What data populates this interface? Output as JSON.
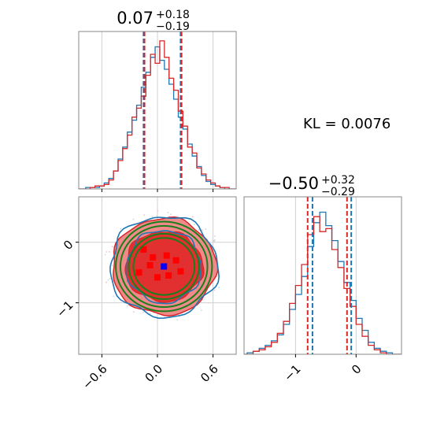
{
  "colors": {
    "blue": "#1f77b4",
    "red": "#d62728",
    "green": "#1a7f1a",
    "grid": "#d0d0d0"
  },
  "annotation": {
    "kl_text": "KL = 0.0076"
  },
  "chart_data": [
    {
      "type": "histogram",
      "panel": "top-left",
      "title_main": "0.07",
      "title_sup": "+0.18",
      "title_sub": "−0.19",
      "xlim": [
        -0.85,
        0.85
      ],
      "quantile_lines": [
        {
          "series": "blue",
          "values": [
            -0.15,
            0.25
          ]
        },
        {
          "series": "red",
          "values": [
            -0.14,
            0.26
          ]
        }
      ],
      "series": [
        {
          "color": "blue",
          "x": [
            -0.85,
            -0.8,
            -0.75,
            -0.7,
            -0.65,
            -0.6,
            -0.55,
            -0.5,
            -0.45,
            -0.4,
            -0.35,
            -0.3,
            -0.25,
            -0.2,
            -0.15,
            -0.1,
            -0.05,
            0.0,
            0.05,
            0.1,
            0.15,
            0.2,
            0.25,
            0.3,
            0.35,
            0.4,
            0.45,
            0.5,
            0.55,
            0.6,
            0.65,
            0.7,
            0.75,
            0.8,
            0.85
          ],
          "y": [
            0.0,
            0.0,
            0.01,
            0.01,
            0.01,
            0.02,
            0.04,
            0.07,
            0.12,
            0.2,
            0.28,
            0.38,
            0.46,
            0.56,
            0.68,
            0.78,
            0.88,
            0.95,
            0.86,
            0.8,
            0.7,
            0.6,
            0.48,
            0.4,
            0.3,
            0.22,
            0.15,
            0.09,
            0.05,
            0.03,
            0.02,
            0.01,
            0.0,
            0.0,
            0.0
          ]
        },
        {
          "color": "red",
          "x": [
            -0.85,
            -0.8,
            -0.75,
            -0.7,
            -0.65,
            -0.6,
            -0.55,
            -0.5,
            -0.45,
            -0.4,
            -0.35,
            -0.3,
            -0.25,
            -0.2,
            -0.15,
            -0.1,
            -0.05,
            0.0,
            0.05,
            0.1,
            0.15,
            0.2,
            0.25,
            0.3,
            0.35,
            0.4,
            0.45,
            0.5,
            0.55,
            0.6,
            0.65,
            0.7,
            0.75,
            0.8,
            0.85
          ],
          "y": [
            0.0,
            0.0,
            0.0,
            0.01,
            0.02,
            0.02,
            0.03,
            0.06,
            0.12,
            0.19,
            0.27,
            0.36,
            0.48,
            0.54,
            0.62,
            0.76,
            0.9,
            0.84,
            0.99,
            0.88,
            0.74,
            0.66,
            0.52,
            0.42,
            0.28,
            0.24,
            0.14,
            0.1,
            0.06,
            0.04,
            0.02,
            0.01,
            0.01,
            0.0,
            0.0
          ]
        }
      ]
    },
    {
      "type": "contour",
      "panel": "bottom-left",
      "xlim": [
        -0.85,
        0.85
      ],
      "ylim": [
        -1.85,
        0.75
      ],
      "xticks": [
        -0.6,
        0.0,
        0.6
      ],
      "xtick_labels": [
        "−0.6",
        "0.0",
        "0.6"
      ],
      "yticks": [
        0,
        -1
      ],
      "ytick_labels": [
        "0",
        "−1"
      ],
      "center": {
        "x": 0.07,
        "y": -0.4
      },
      "contours": [
        {
          "series": "red-filled-outer",
          "sx": 0.56,
          "sy": 0.8
        },
        {
          "series": "red-filled-inner",
          "sx": 0.42,
          "sy": 0.58
        },
        {
          "series": "blue",
          "sx": 0.58,
          "sy": 0.83
        },
        {
          "series": "blue",
          "sx": 0.4,
          "sy": 0.6
        },
        {
          "series": "green",
          "sx": 0.52,
          "sy": 0.74
        },
        {
          "series": "green",
          "sx": 0.47,
          "sy": 0.67
        },
        {
          "series": "green",
          "sx": 0.38,
          "sy": 0.54
        },
        {
          "series": "green",
          "sx": 0.33,
          "sy": 0.47
        }
      ],
      "red_markers": [
        {
          "x": -0.15,
          "y": -0.12
        },
        {
          "x": -0.08,
          "y": -0.38
        },
        {
          "x": -0.2,
          "y": -0.5
        },
        {
          "x": 0.0,
          "y": -0.58
        },
        {
          "x": 0.12,
          "y": -0.55
        },
        {
          "x": 0.25,
          "y": -0.48
        },
        {
          "x": 0.1,
          "y": -0.22
        },
        {
          "x": 0.2,
          "y": -0.3
        },
        {
          "x": -0.05,
          "y": -0.25
        }
      ],
      "blue_marker": {
        "x": 0.07,
        "y": -0.4
      }
    },
    {
      "type": "histogram",
      "panel": "bottom-right",
      "title_main": "−0.50",
      "title_sup": "+0.32",
      "title_sub": "−0.29",
      "xlim": [
        -1.85,
        0.75
      ],
      "xticks": [
        -1,
        0
      ],
      "xtick_labels": [
        "−1",
        "0"
      ],
      "quantile_lines": [
        {
          "series": "blue",
          "values": [
            -0.72,
            -0.08
          ]
        },
        {
          "series": "red",
          "values": [
            -0.8,
            -0.15
          ]
        }
      ],
      "series": [
        {
          "color": "blue",
          "x": [
            -1.85,
            -1.75,
            -1.65,
            -1.55,
            -1.45,
            -1.35,
            -1.25,
            -1.15,
            -1.05,
            -0.95,
            -0.85,
            -0.75,
            -0.65,
            -0.55,
            -0.45,
            -0.35,
            -0.25,
            -0.15,
            -0.05,
            0.05,
            0.15,
            0.25,
            0.35,
            0.45,
            0.55,
            0.65,
            0.75
          ],
          "y": [
            0.0,
            0.01,
            0.02,
            0.04,
            0.06,
            0.09,
            0.13,
            0.2,
            0.3,
            0.4,
            0.52,
            0.72,
            0.88,
            0.95,
            0.86,
            0.76,
            0.62,
            0.48,
            0.36,
            0.24,
            0.16,
            0.08,
            0.04,
            0.02,
            0.01,
            0.0,
            0.0
          ]
        },
        {
          "color": "red",
          "x": [
            -1.85,
            -1.75,
            -1.65,
            -1.55,
            -1.45,
            -1.35,
            -1.25,
            -1.15,
            -1.05,
            -0.95,
            -0.85,
            -0.75,
            -0.65,
            -0.55,
            -0.45,
            -0.35,
            -0.25,
            -0.15,
            -0.05,
            0.05,
            0.15,
            0.25,
            0.35,
            0.45,
            0.55,
            0.65,
            0.75
          ],
          "y": [
            0.0,
            0.0,
            0.02,
            0.03,
            0.05,
            0.08,
            0.14,
            0.22,
            0.34,
            0.46,
            0.6,
            0.8,
            0.92,
            0.82,
            0.84,
            0.7,
            0.58,
            0.44,
            0.32,
            0.2,
            0.12,
            0.06,
            0.03,
            0.01,
            0.0,
            0.0,
            0.0
          ]
        }
      ]
    }
  ]
}
